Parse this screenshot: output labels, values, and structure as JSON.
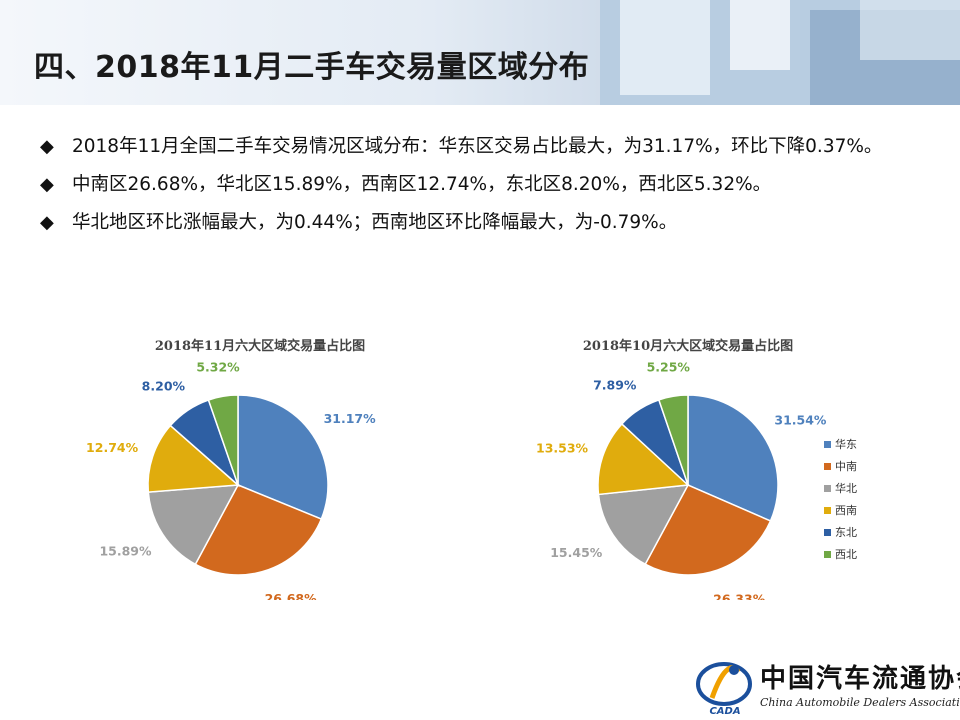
{
  "header": {
    "title": "四、2018年11月二手车交易量区域分布"
  },
  "bullets": [
    {
      "marker": "◆",
      "text": "2018年11月全国二手车交易情况区域分布：华东区交易占比最大，为31.17%，环比下降0.37%。"
    },
    {
      "marker": "◆",
      "text": "中南区26.68%，华北区15.89%，西南区12.74%，东北区8.20%，西北区5.32%。"
    },
    {
      "marker": "◆",
      "text": "华北地区环比涨幅最大，为0.44%；西南地区环比降幅最大，为-0.79%。"
    }
  ],
  "colors": {
    "华东": "#4f81bd",
    "中南": "#d2691e",
    "华北": "#a0a0a0",
    "西南": "#e0ac0d",
    "东北": "#2e5fa3",
    "西北": "#70a845"
  },
  "chart_data": [
    {
      "type": "pie",
      "title": "2018年11月六大区域交易量占比图",
      "categories": [
        "华东",
        "中南",
        "华北",
        "西南",
        "东北",
        "西北"
      ],
      "values": [
        31.17,
        26.68,
        15.89,
        12.74,
        8.2,
        5.32
      ],
      "labels": [
        "31.17%",
        "26.68%",
        "15.89%",
        "12.74%",
        "8.20%",
        "5.32%"
      ],
      "legend": false
    },
    {
      "type": "pie",
      "title": "2018年10月六大区域交易量占比图",
      "categories": [
        "华东",
        "中南",
        "华北",
        "西南",
        "东北",
        "西北"
      ],
      "values": [
        31.54,
        26.33,
        15.45,
        13.53,
        7.89,
        5.25
      ],
      "labels": [
        "31.54%",
        "26.33%",
        "15.45%",
        "13.53%",
        "7.89%",
        "5.25%"
      ],
      "legend": "right"
    }
  ],
  "logo": {
    "cn": "中国汽车流通协会",
    "en": "China Automobile Dealers Association",
    "mark": "CADA"
  }
}
